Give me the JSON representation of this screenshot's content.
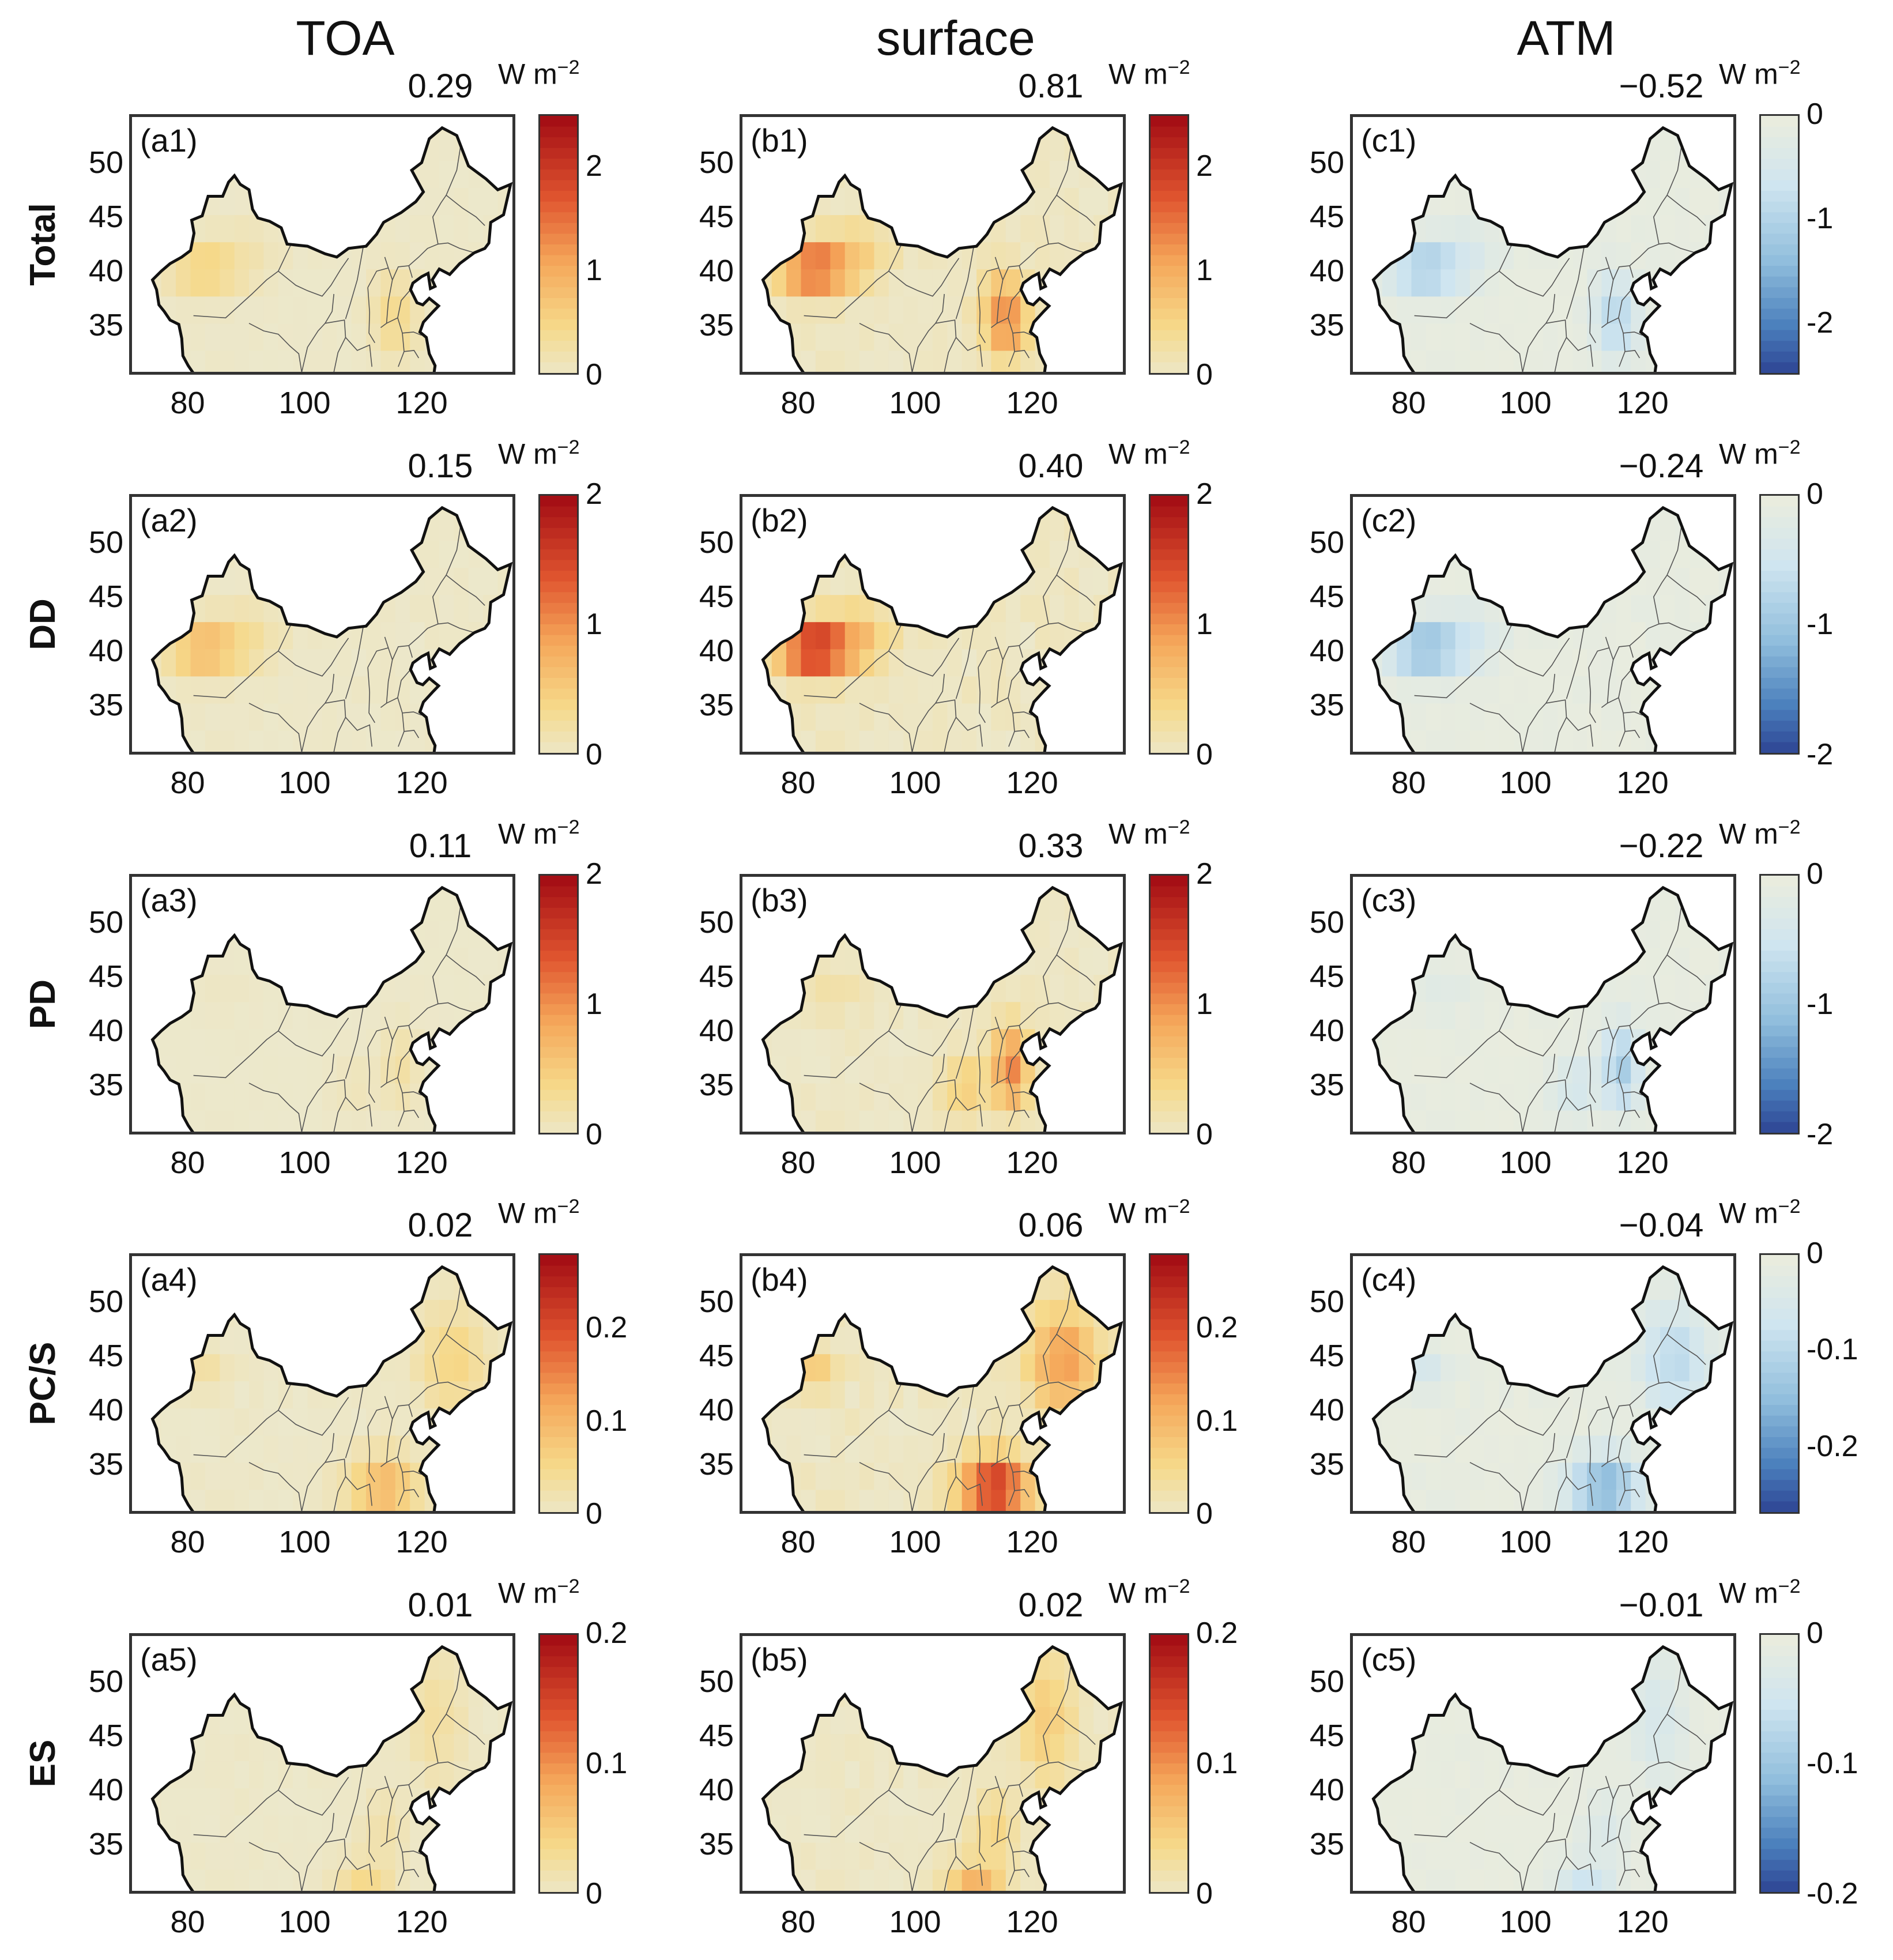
{
  "figure": {
    "columns": [
      "TOA",
      "surface",
      "ATM"
    ],
    "rows": [
      "Total",
      "DD",
      "PD",
      "PC/S",
      "ES"
    ],
    "unit_base": "W m",
    "unit_exp": "−2",
    "x_ticks": [
      "80",
      "100",
      "120"
    ],
    "y_ticks": [
      "50",
      "45",
      "40",
      "35"
    ],
    "colors": {
      "warm_low": "#ece8cc",
      "warm_high": "#a50f15",
      "cool_low": "#e9ecde",
      "cool_high": "#2a3d8f"
    }
  },
  "chart_data": [
    {
      "type": "heatmap",
      "panel": "(a1)",
      "column": "TOA",
      "row": "Total",
      "mean": "0.29",
      "cmap": "warm",
      "ticks": [
        "2",
        "1",
        "0"
      ],
      "range": [
        0,
        2.5
      ],
      "field": "total",
      "scale": 0.3
    },
    {
      "type": "heatmap",
      "panel": "(b1)",
      "column": "surface",
      "row": "Total",
      "mean": "0.81",
      "cmap": "warm",
      "ticks": [
        "2",
        "1",
        "0"
      ],
      "range": [
        0,
        2.5
      ],
      "field": "total",
      "scale": 0.85
    },
    {
      "type": "heatmap",
      "panel": "(c1)",
      "column": "ATM",
      "row": "Total",
      "mean": "−0.52",
      "cmap": "cool",
      "ticks": [
        "0",
        "-1",
        "-2"
      ],
      "range": [
        -2.5,
        0
      ],
      "field": "total",
      "scale": 0.55
    },
    {
      "type": "heatmap",
      "panel": "(a2)",
      "column": "TOA",
      "row": "DD",
      "mean": "0.15",
      "cmap": "warm",
      "ticks": [
        "2",
        "1",
        "0"
      ],
      "range": [
        0,
        2
      ],
      "field": "dd",
      "scale": 0.42
    },
    {
      "type": "heatmap",
      "panel": "(b2)",
      "column": "surface",
      "row": "DD",
      "mean": "0.40",
      "cmap": "warm",
      "ticks": [
        "2",
        "1",
        "0"
      ],
      "range": [
        0,
        2
      ],
      "field": "dd",
      "scale": 1.0
    },
    {
      "type": "heatmap",
      "panel": "(c2)",
      "column": "ATM",
      "row": "DD",
      "mean": "−0.24",
      "cmap": "cool",
      "ticks": [
        "0",
        "-1",
        "-2"
      ],
      "range": [
        -2,
        0
      ],
      "field": "dd",
      "scale": 0.6
    },
    {
      "type": "heatmap",
      "panel": "(a3)",
      "column": "TOA",
      "row": "PD",
      "mean": "0.11",
      "cmap": "warm",
      "ticks": [
        "2",
        "1",
        "0"
      ],
      "range": [
        0,
        2
      ],
      "field": "pd",
      "scale": 0.15
    },
    {
      "type": "heatmap",
      "panel": "(b3)",
      "column": "surface",
      "row": "PD",
      "mean": "0.33",
      "cmap": "warm",
      "ticks": [
        "2",
        "1",
        "0"
      ],
      "range": [
        0,
        2
      ],
      "field": "pd",
      "scale": 0.7
    },
    {
      "type": "heatmap",
      "panel": "(c3)",
      "column": "ATM",
      "row": "PD",
      "mean": "−0.22",
      "cmap": "cool",
      "ticks": [
        "0",
        "-1",
        "-2"
      ],
      "range": [
        -2,
        0
      ],
      "field": "pd",
      "scale": 0.55
    },
    {
      "type": "heatmap",
      "panel": "(a4)",
      "column": "TOA",
      "row": "PC/S",
      "mean": "0.02",
      "cmap": "warm",
      "ticks": [
        "0.2",
        "0.1",
        "0"
      ],
      "range": [
        0,
        0.28
      ],
      "field": "pcs",
      "scale": 0.45
    },
    {
      "type": "heatmap",
      "panel": "(b4)",
      "column": "surface",
      "row": "PC/S",
      "mean": "0.06",
      "cmap": "warm",
      "ticks": [
        "0.2",
        "0.1",
        "0"
      ],
      "range": [
        0,
        0.28
      ],
      "field": "pcs",
      "scale": 1.0
    },
    {
      "type": "heatmap",
      "panel": "(c4)",
      "column": "ATM",
      "row": "PC/S",
      "mean": "−0.04",
      "cmap": "cool",
      "ticks": [
        "0",
        "-0.1",
        "-0.2"
      ],
      "range": [
        -0.27,
        0
      ],
      "field": "pcs",
      "scale": 0.7
    },
    {
      "type": "heatmap",
      "panel": "(a5)",
      "column": "TOA",
      "row": "ES",
      "mean": "0.01",
      "cmap": "warm",
      "ticks": [
        "0.2",
        "0.1",
        "0"
      ],
      "range": [
        0,
        0.2
      ],
      "field": "es",
      "scale": 0.35
    },
    {
      "type": "heatmap",
      "panel": "(b5)",
      "column": "surface",
      "row": "ES",
      "mean": "0.02",
      "cmap": "warm",
      "ticks": [
        "0.2",
        "0.1",
        "0"
      ],
      "range": [
        0,
        0.2
      ],
      "field": "es",
      "scale": 0.7
    },
    {
      "type": "heatmap",
      "panel": "(c5)",
      "column": "ATM",
      "row": "ES",
      "mean": "−0.01",
      "cmap": "cool",
      "ticks": [
        "0",
        "-0.1",
        "-0.2"
      ],
      "range": [
        -0.2,
        0
      ],
      "field": "es",
      "scale": 0.45
    }
  ]
}
